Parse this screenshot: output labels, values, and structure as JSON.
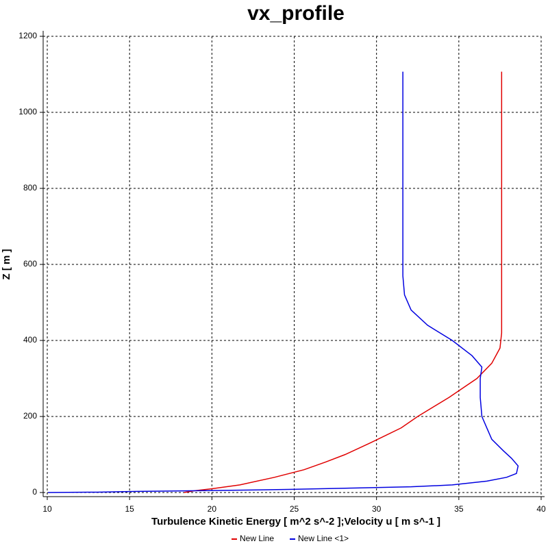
{
  "chart_data": {
    "type": "line",
    "title": "vx_profile",
    "x_label": "Turbulence Kinetic Energy [ m^2 s^-2 ];Velocity u [ m s^-1 ]",
    "y_label": "Z [ m ]",
    "xlim": [
      10,
      40
    ],
    "xticks": [
      10,
      15,
      20,
      25,
      30,
      35,
      40
    ],
    "ylim": [
      0,
      1200
    ],
    "yticks": [
      0,
      200,
      400,
      600,
      800,
      1000,
      1200
    ],
    "grid": true,
    "legend": "bottom",
    "series": [
      {
        "name": "New Line",
        "color": "#e00000",
        "x": [
          18.3,
          19.0,
          20.0,
          21.7,
          23.8,
          25.6,
          26.9,
          28.1,
          29.6,
          31.5,
          32.5,
          34.4,
          36.1,
          37.0,
          37.5,
          37.6,
          37.6,
          37.6
        ],
        "y": [
          0,
          5,
          10,
          20,
          40,
          60,
          80,
          100,
          130,
          170,
          200,
          250,
          300,
          340,
          380,
          420,
          600,
          1107
        ]
      },
      {
        "name": "New Line <1>",
        "color": "#0000e0",
        "x": [
          10.05,
          13.0,
          15.45,
          19.6,
          24.6,
          28.8,
          32.1,
          34.6,
          36.7,
          37.9,
          38.5,
          38.6,
          38.2,
          37.7,
          37.0,
          36.7,
          36.4,
          36.3,
          36.3,
          36.4,
          35.8,
          34.6,
          33.1,
          32.1,
          31.7,
          31.6,
          31.6
        ],
        "y": [
          0,
          1,
          3,
          5,
          8,
          12,
          15,
          20,
          30,
          40,
          50,
          70,
          90,
          110,
          140,
          170,
          200,
          250,
          300,
          330,
          360,
          400,
          440,
          480,
          520,
          570,
          1107
        ]
      }
    ]
  }
}
